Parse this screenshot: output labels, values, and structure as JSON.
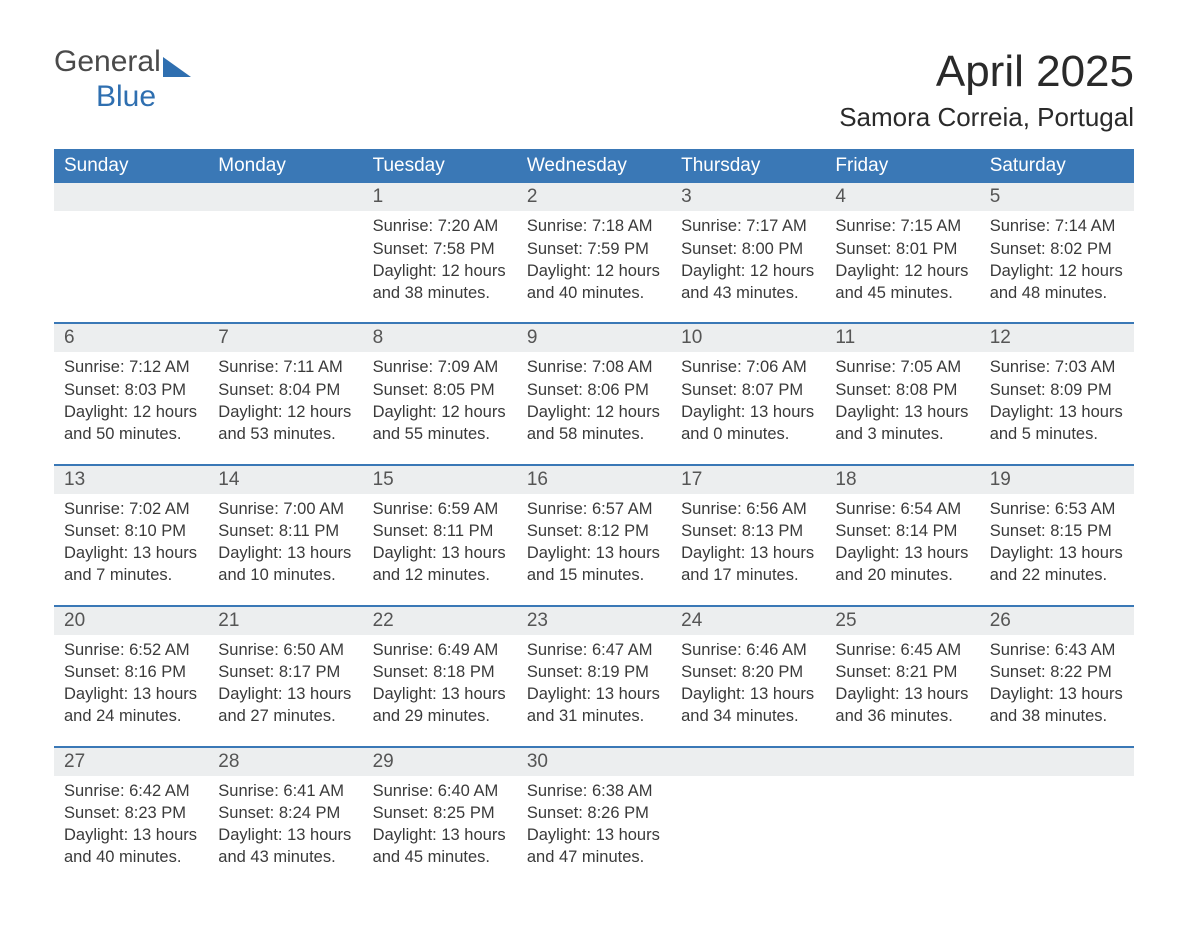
{
  "brand": {
    "word1": "General",
    "word2": "Blue",
    "logo_color": "#2f6fb0"
  },
  "title": "April 2025",
  "location": "Samora Correia, Portugal",
  "colors": {
    "header_bg": "#3a78b6",
    "header_text": "#ffffff",
    "daynum_bg": "#eceeef",
    "cell_divider": "#3a78b6",
    "body_text": "#3a3a3a"
  },
  "day_headers": [
    "Sunday",
    "Monday",
    "Tuesday",
    "Wednesday",
    "Thursday",
    "Friday",
    "Saturday"
  ],
  "weeks": [
    [
      null,
      null,
      {
        "n": "1",
        "sunrise": "7:20 AM",
        "sunset": "7:58 PM",
        "daylight": "12 hours and 38 minutes."
      },
      {
        "n": "2",
        "sunrise": "7:18 AM",
        "sunset": "7:59 PM",
        "daylight": "12 hours and 40 minutes."
      },
      {
        "n": "3",
        "sunrise": "7:17 AM",
        "sunset": "8:00 PM",
        "daylight": "12 hours and 43 minutes."
      },
      {
        "n": "4",
        "sunrise": "7:15 AM",
        "sunset": "8:01 PM",
        "daylight": "12 hours and 45 minutes."
      },
      {
        "n": "5",
        "sunrise": "7:14 AM",
        "sunset": "8:02 PM",
        "daylight": "12 hours and 48 minutes."
      }
    ],
    [
      {
        "n": "6",
        "sunrise": "7:12 AM",
        "sunset": "8:03 PM",
        "daylight": "12 hours and 50 minutes."
      },
      {
        "n": "7",
        "sunrise": "7:11 AM",
        "sunset": "8:04 PM",
        "daylight": "12 hours and 53 minutes."
      },
      {
        "n": "8",
        "sunrise": "7:09 AM",
        "sunset": "8:05 PM",
        "daylight": "12 hours and 55 minutes."
      },
      {
        "n": "9",
        "sunrise": "7:08 AM",
        "sunset": "8:06 PM",
        "daylight": "12 hours and 58 minutes."
      },
      {
        "n": "10",
        "sunrise": "7:06 AM",
        "sunset": "8:07 PM",
        "daylight": "13 hours and 0 minutes."
      },
      {
        "n": "11",
        "sunrise": "7:05 AM",
        "sunset": "8:08 PM",
        "daylight": "13 hours and 3 minutes."
      },
      {
        "n": "12",
        "sunrise": "7:03 AM",
        "sunset": "8:09 PM",
        "daylight": "13 hours and 5 minutes."
      }
    ],
    [
      {
        "n": "13",
        "sunrise": "7:02 AM",
        "sunset": "8:10 PM",
        "daylight": "13 hours and 7 minutes."
      },
      {
        "n": "14",
        "sunrise": "7:00 AM",
        "sunset": "8:11 PM",
        "daylight": "13 hours and 10 minutes."
      },
      {
        "n": "15",
        "sunrise": "6:59 AM",
        "sunset": "8:11 PM",
        "daylight": "13 hours and 12 minutes."
      },
      {
        "n": "16",
        "sunrise": "6:57 AM",
        "sunset": "8:12 PM",
        "daylight": "13 hours and 15 minutes."
      },
      {
        "n": "17",
        "sunrise": "6:56 AM",
        "sunset": "8:13 PM",
        "daylight": "13 hours and 17 minutes."
      },
      {
        "n": "18",
        "sunrise": "6:54 AM",
        "sunset": "8:14 PM",
        "daylight": "13 hours and 20 minutes."
      },
      {
        "n": "19",
        "sunrise": "6:53 AM",
        "sunset": "8:15 PM",
        "daylight": "13 hours and 22 minutes."
      }
    ],
    [
      {
        "n": "20",
        "sunrise": "6:52 AM",
        "sunset": "8:16 PM",
        "daylight": "13 hours and 24 minutes."
      },
      {
        "n": "21",
        "sunrise": "6:50 AM",
        "sunset": "8:17 PM",
        "daylight": "13 hours and 27 minutes."
      },
      {
        "n": "22",
        "sunrise": "6:49 AM",
        "sunset": "8:18 PM",
        "daylight": "13 hours and 29 minutes."
      },
      {
        "n": "23",
        "sunrise": "6:47 AM",
        "sunset": "8:19 PM",
        "daylight": "13 hours and 31 minutes."
      },
      {
        "n": "24",
        "sunrise": "6:46 AM",
        "sunset": "8:20 PM",
        "daylight": "13 hours and 34 minutes."
      },
      {
        "n": "25",
        "sunrise": "6:45 AM",
        "sunset": "8:21 PM",
        "daylight": "13 hours and 36 minutes."
      },
      {
        "n": "26",
        "sunrise": "6:43 AM",
        "sunset": "8:22 PM",
        "daylight": "13 hours and 38 minutes."
      }
    ],
    [
      {
        "n": "27",
        "sunrise": "6:42 AM",
        "sunset": "8:23 PM",
        "daylight": "13 hours and 40 minutes."
      },
      {
        "n": "28",
        "sunrise": "6:41 AM",
        "sunset": "8:24 PM",
        "daylight": "13 hours and 43 minutes."
      },
      {
        "n": "29",
        "sunrise": "6:40 AM",
        "sunset": "8:25 PM",
        "daylight": "13 hours and 45 minutes."
      },
      {
        "n": "30",
        "sunrise": "6:38 AM",
        "sunset": "8:26 PM",
        "daylight": "13 hours and 47 minutes."
      },
      null,
      null,
      null
    ]
  ],
  "labels": {
    "sunrise": "Sunrise:",
    "sunset": "Sunset:",
    "daylight": "Daylight:"
  }
}
